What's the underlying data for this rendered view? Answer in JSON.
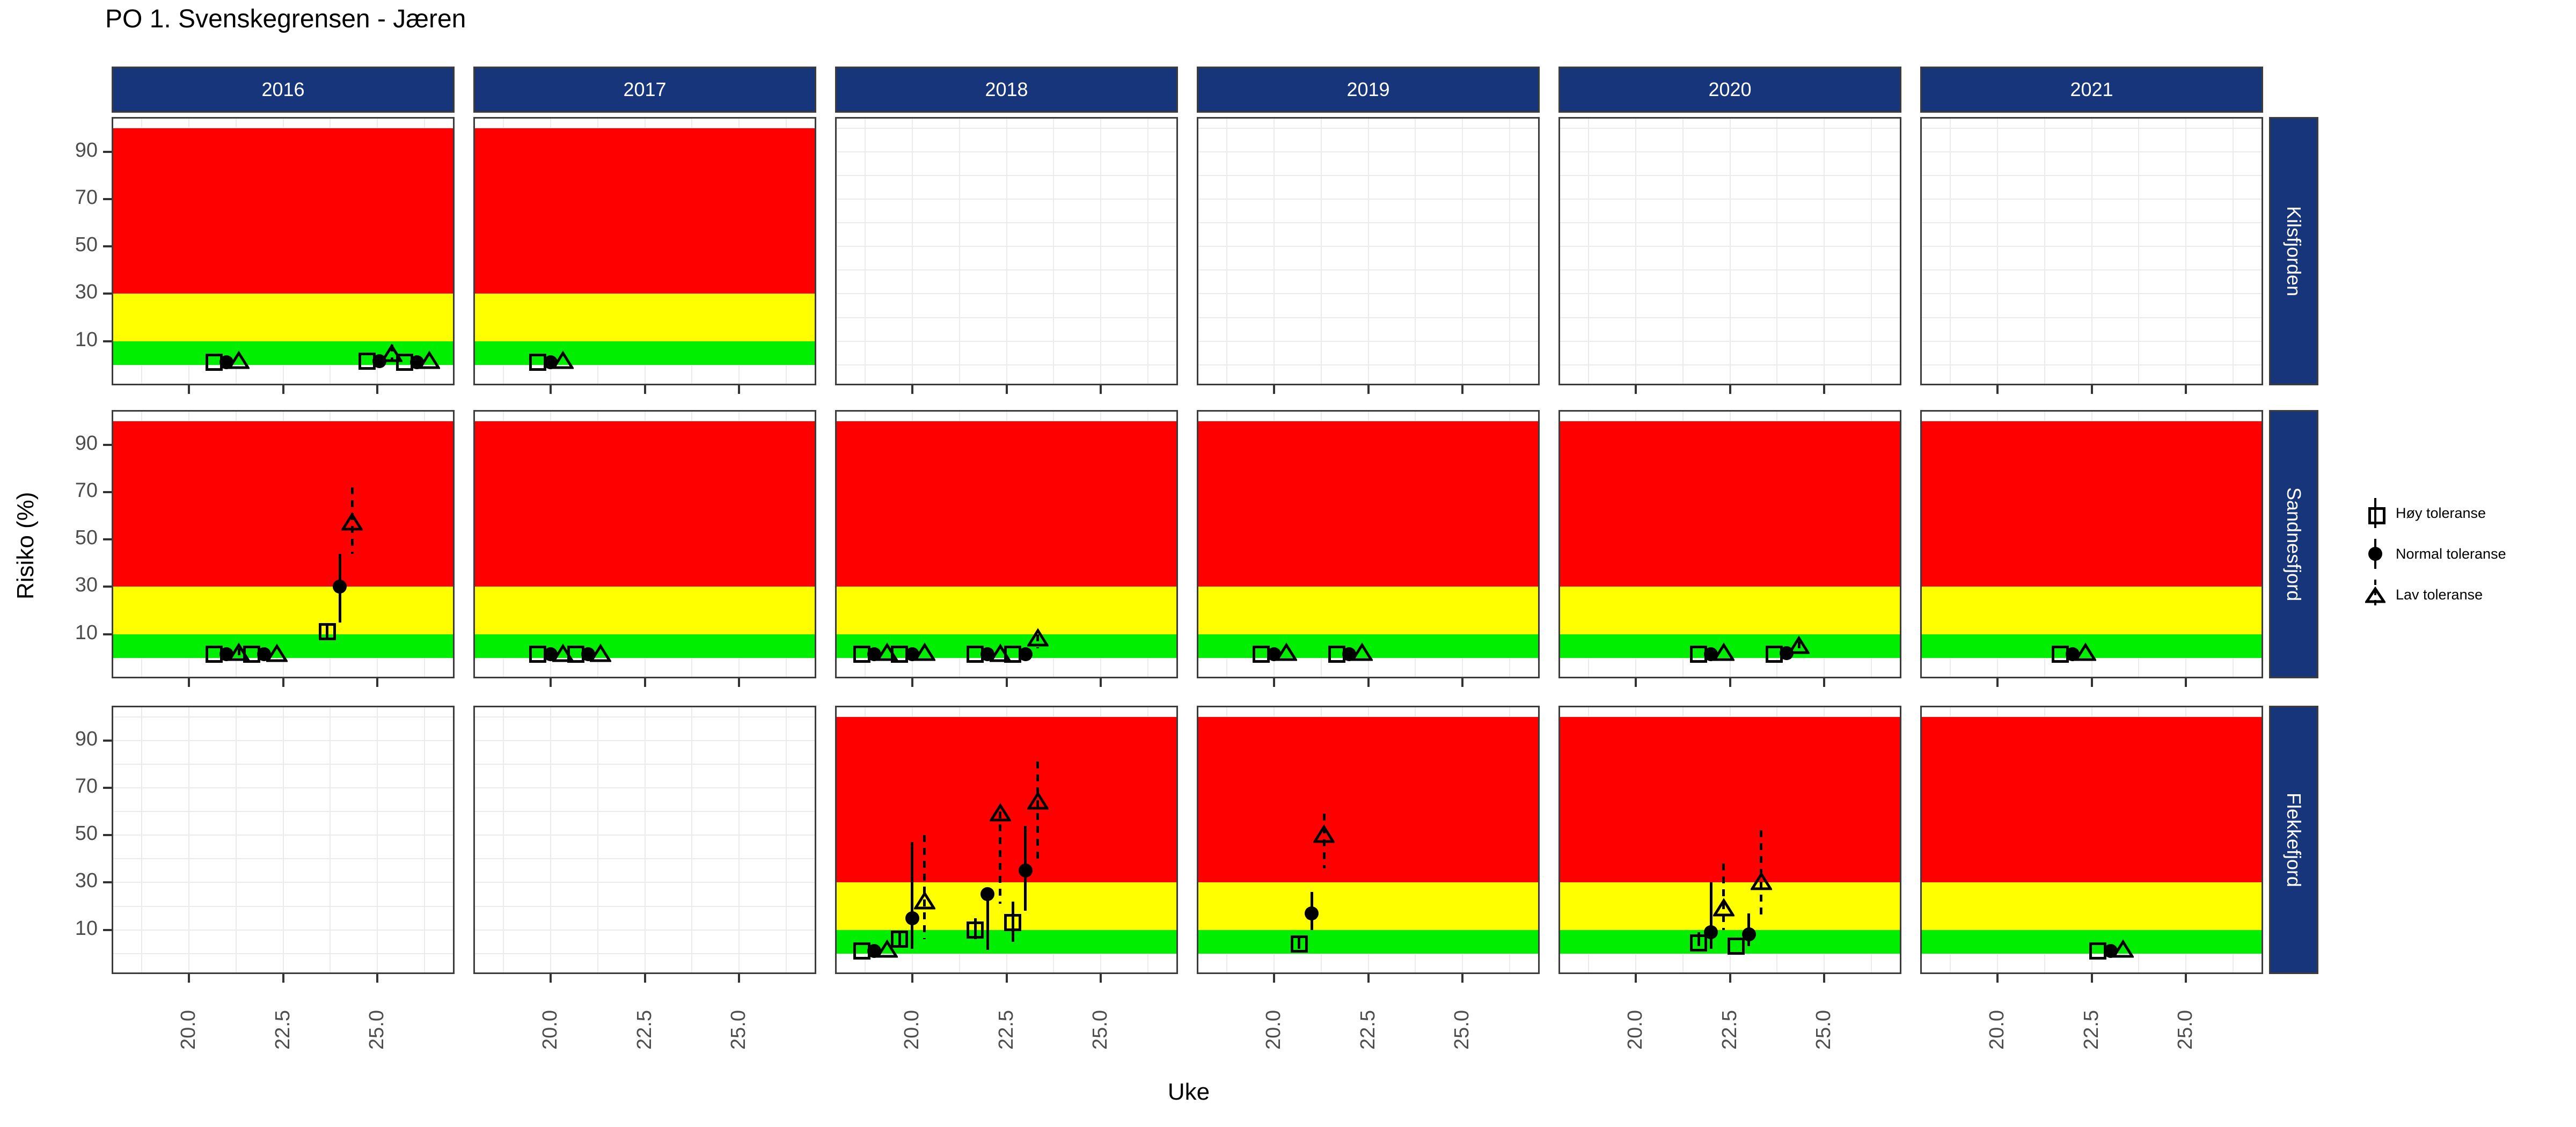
{
  "title": "PO 1. Svenskegrensen - Jæren",
  "axes": {
    "x_label": "Uke",
    "y_label": "Risiko (%)",
    "x_tick_labels": [
      "20.0",
      "22.5",
      "25.0"
    ],
    "x_ticks": [
      20.0,
      22.5,
      25.0
    ],
    "x_minor_gridlines": [
      18.75,
      20.0,
      21.25,
      22.5,
      23.75,
      25.0,
      26.25
    ],
    "y_ticks": [
      10,
      30,
      50,
      70,
      90
    ],
    "y_gridlines": [
      0,
      10,
      20,
      30,
      40,
      50,
      60,
      70,
      80,
      90,
      100
    ],
    "x_domain": [
      18,
      27
    ],
    "y_domain": [
      -8,
      104
    ]
  },
  "colors": {
    "strip_blue": "#17357b",
    "band_green": "#00ee00",
    "band_yellow": "#ffff00",
    "band_red": "#ff0000",
    "panel_border": "#3c3c3c",
    "gridline": "#ebebeb",
    "tick_text": "#4d4d4d",
    "marker": "#000000"
  },
  "legend": {
    "items": [
      {
        "id": "hoy",
        "label": "Høy toleranse",
        "marker": "square",
        "line": "solid"
      },
      {
        "id": "normal",
        "label": "Normal toleranse",
        "marker": "circle",
        "line": "solid"
      },
      {
        "id": "lav",
        "label": "Lav toleranse",
        "marker": "triangle",
        "line": "dashed"
      }
    ]
  },
  "chart_data": {
    "type": "scatter",
    "note": "faceted pointrange chart; risk bands green 0-10, yellow 10-30, red 30-100",
    "facet_columns": [
      "2016",
      "2017",
      "2018",
      "2019",
      "2020",
      "2021"
    ],
    "facet_rows": [
      "Kilsfjorden",
      "Sandnesfjord",
      "Flekkefjord"
    ],
    "risk_bands": [
      {
        "name": "green",
        "from": 0,
        "to": 10,
        "color": "#00ee00"
      },
      {
        "name": "yellow",
        "from": 10,
        "to": 30,
        "color": "#ffff00"
      },
      {
        "name": "red",
        "from": 30,
        "to": 100,
        "color": "#ff0000"
      }
    ],
    "panels": [
      {
        "row": "Kilsfjorden",
        "col": "2016",
        "bands": true,
        "points": [
          {
            "series": "hoy",
            "week": 20.67,
            "value": 1
          },
          {
            "series": "normal",
            "week": 21.0,
            "value": 1
          },
          {
            "series": "lav",
            "week": 21.33,
            "value": 1.5
          },
          {
            "series": "hoy",
            "week": 24.72,
            "value": 1.5
          },
          {
            "series": "normal",
            "week": 25.05,
            "value": 1.5
          },
          {
            "series": "lav",
            "week": 25.38,
            "value": 4.5,
            "lo": 2,
            "hi": 8.5
          },
          {
            "series": "hoy",
            "week": 25.72,
            "value": 1
          },
          {
            "series": "normal",
            "week": 26.05,
            "value": 1
          },
          {
            "series": "lav",
            "week": 26.38,
            "value": 1.5
          }
        ]
      },
      {
        "row": "Kilsfjorden",
        "col": "2017",
        "bands": true,
        "points": [
          {
            "series": "hoy",
            "week": 19.67,
            "value": 1
          },
          {
            "series": "normal",
            "week": 20.0,
            "value": 1
          },
          {
            "series": "lav",
            "week": 20.33,
            "value": 1.5
          }
        ]
      },
      {
        "row": "Kilsfjorden",
        "col": "2018",
        "bands": false,
        "points": []
      },
      {
        "row": "Kilsfjorden",
        "col": "2019",
        "bands": false,
        "points": []
      },
      {
        "row": "Kilsfjorden",
        "col": "2020",
        "bands": false,
        "points": []
      },
      {
        "row": "Kilsfjorden",
        "col": "2021",
        "bands": false,
        "points": []
      },
      {
        "row": "Sandnesfjord",
        "col": "2016",
        "bands": true,
        "points": [
          {
            "series": "hoy",
            "week": 20.67,
            "value": 1.5
          },
          {
            "series": "normal",
            "week": 21.0,
            "value": 1.5
          },
          {
            "series": "lav",
            "week": 21.33,
            "value": 2,
            "lo": 1,
            "hi": 4
          },
          {
            "series": "hoy",
            "week": 21.67,
            "value": 1.5
          },
          {
            "series": "normal",
            "week": 22.0,
            "value": 1.5
          },
          {
            "series": "lav",
            "week": 22.33,
            "value": 1.5
          },
          {
            "series": "hoy",
            "week": 23.67,
            "value": 11,
            "lo": 8,
            "hi": 14
          },
          {
            "series": "normal",
            "week": 24.0,
            "value": 30,
            "lo": 15,
            "hi": 44
          },
          {
            "series": "lav",
            "week": 24.33,
            "value": 57,
            "lo": 44,
            "hi": 72
          }
        ]
      },
      {
        "row": "Sandnesfjord",
        "col": "2017",
        "bands": true,
        "points": [
          {
            "series": "hoy",
            "week": 19.67,
            "value": 1.5
          },
          {
            "series": "normal",
            "week": 20.0,
            "value": 1.5
          },
          {
            "series": "lav",
            "week": 20.33,
            "value": 1.5
          },
          {
            "series": "hoy",
            "week": 20.67,
            "value": 1.5
          },
          {
            "series": "normal",
            "week": 21.0,
            "value": 1.5
          },
          {
            "series": "lav",
            "week": 21.33,
            "value": 1.5
          }
        ]
      },
      {
        "row": "Sandnesfjord",
        "col": "2018",
        "bands": true,
        "points": [
          {
            "series": "hoy",
            "week": 18.67,
            "value": 1.5
          },
          {
            "series": "normal",
            "week": 19.0,
            "value": 1.5
          },
          {
            "series": "lav",
            "week": 19.33,
            "value": 2
          },
          {
            "series": "hoy",
            "week": 19.67,
            "value": 1.5
          },
          {
            "series": "normal",
            "week": 20.0,
            "value": 1.5
          },
          {
            "series": "lav",
            "week": 20.33,
            "value": 2
          },
          {
            "series": "hoy",
            "week": 21.67,
            "value": 1.5
          },
          {
            "series": "normal",
            "week": 22.0,
            "value": 1.5
          },
          {
            "series": "lav",
            "week": 22.33,
            "value": 1.5
          },
          {
            "series": "hoy",
            "week": 22.67,
            "value": 1.5
          },
          {
            "series": "normal",
            "week": 23.0,
            "value": 1.5
          },
          {
            "series": "lav",
            "week": 23.33,
            "value": 8,
            "lo": 4,
            "hi": 10
          }
        ]
      },
      {
        "row": "Sandnesfjord",
        "col": "2019",
        "bands": true,
        "points": [
          {
            "series": "hoy",
            "week": 19.67,
            "value": 1.5
          },
          {
            "series": "normal",
            "week": 20.0,
            "value": 1.5
          },
          {
            "series": "lav",
            "week": 20.33,
            "value": 2
          },
          {
            "series": "hoy",
            "week": 21.67,
            "value": 1.5
          },
          {
            "series": "normal",
            "week": 22.0,
            "value": 1.5
          },
          {
            "series": "lav",
            "week": 22.33,
            "value": 2
          }
        ]
      },
      {
        "row": "Sandnesfjord",
        "col": "2020",
        "bands": true,
        "points": [
          {
            "series": "hoy",
            "week": 21.67,
            "value": 1.5
          },
          {
            "series": "normal",
            "week": 22.0,
            "value": 1.5
          },
          {
            "series": "lav",
            "week": 22.33,
            "value": 2
          },
          {
            "series": "hoy",
            "week": 23.67,
            "value": 1.5
          },
          {
            "series": "normal",
            "week": 24.0,
            "value": 2
          },
          {
            "series": "lav",
            "week": 24.33,
            "value": 5,
            "lo": 3,
            "hi": 7
          }
        ]
      },
      {
        "row": "Sandnesfjord",
        "col": "2021",
        "bands": true,
        "points": [
          {
            "series": "hoy",
            "week": 21.67,
            "value": 1.5
          },
          {
            "series": "normal",
            "week": 22.0,
            "value": 1.5
          },
          {
            "series": "lav",
            "week": 22.33,
            "value": 2
          }
        ]
      },
      {
        "row": "Flekkefjord",
        "col": "2016",
        "bands": false,
        "points": []
      },
      {
        "row": "Flekkefjord",
        "col": "2017",
        "bands": false,
        "points": []
      },
      {
        "row": "Flekkefjord",
        "col": "2018",
        "bands": true,
        "points": [
          {
            "series": "hoy",
            "week": 18.67,
            "value": 1
          },
          {
            "series": "normal",
            "week": 19.0,
            "value": 1
          },
          {
            "series": "lav",
            "week": 19.33,
            "value": 1.5
          },
          {
            "series": "hoy",
            "week": 19.67,
            "value": 6,
            "lo": 3,
            "hi": 9
          },
          {
            "series": "normal",
            "week": 20.0,
            "value": 15,
            "lo": 2,
            "hi": 47
          },
          {
            "series": "lav",
            "week": 20.33,
            "value": 22,
            "lo": 6,
            "hi": 50
          },
          {
            "series": "hoy",
            "week": 21.67,
            "value": 10,
            "lo": 6,
            "hi": 15
          },
          {
            "series": "normal",
            "week": 22.0,
            "value": 25,
            "lo": 1.5,
            "hi": 26
          },
          {
            "series": "lav",
            "week": 22.33,
            "value": 59,
            "lo": 21,
            "hi": 60
          },
          {
            "series": "hoy",
            "week": 22.67,
            "value": 13,
            "lo": 5,
            "hi": 22
          },
          {
            "series": "normal",
            "week": 23.0,
            "value": 35,
            "lo": 18,
            "hi": 54
          },
          {
            "series": "lav",
            "week": 23.33,
            "value": 64,
            "lo": 40,
            "hi": 81
          }
        ]
      },
      {
        "row": "Flekkefjord",
        "col": "2019",
        "bands": true,
        "points": [
          {
            "series": "hoy",
            "week": 20.67,
            "value": 4,
            "lo": 2,
            "hi": 7
          },
          {
            "series": "normal",
            "week": 21.0,
            "value": 17,
            "lo": 10,
            "hi": 26
          },
          {
            "series": "lav",
            "week": 21.33,
            "value": 50,
            "lo": 36,
            "hi": 59
          }
        ]
      },
      {
        "row": "Flekkefjord",
        "col": "2020",
        "bands": true,
        "points": [
          {
            "series": "hoy",
            "week": 21.67,
            "value": 4.5,
            "lo": 3,
            "hi": 9
          },
          {
            "series": "normal",
            "week": 22.0,
            "value": 9,
            "lo": 2,
            "hi": 30
          },
          {
            "series": "lav",
            "week": 22.33,
            "value": 19,
            "lo": 10,
            "hi": 38
          },
          {
            "series": "hoy",
            "week": 22.67,
            "value": 3
          },
          {
            "series": "normal",
            "week": 23.0,
            "value": 8,
            "lo": 3,
            "hi": 17
          },
          {
            "series": "lav",
            "week": 23.33,
            "value": 30,
            "lo": 15,
            "hi": 52
          }
        ]
      },
      {
        "row": "Flekkefjord",
        "col": "2021",
        "bands": true,
        "points": [
          {
            "series": "hoy",
            "week": 22.67,
            "value": 1
          },
          {
            "series": "normal",
            "week": 23.0,
            "value": 1
          },
          {
            "series": "lav",
            "week": 23.33,
            "value": 1.5
          }
        ]
      }
    ]
  }
}
